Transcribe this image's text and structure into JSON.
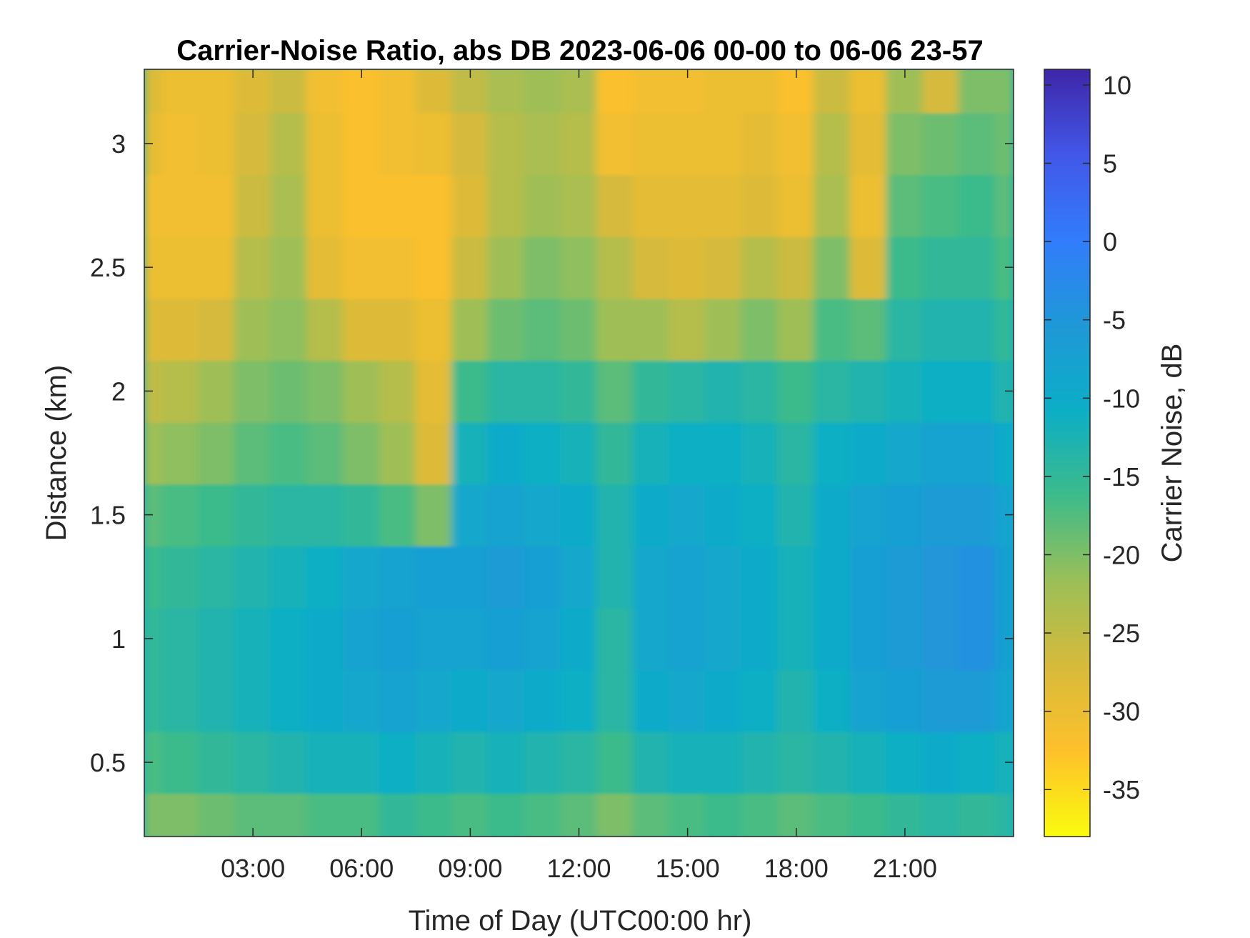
{
  "chart_data": {
    "type": "heatmap",
    "title": "Carrier-Noise Ratio, abs DB 2023-06-06 00-00 to 06-06 23-57",
    "xlabel": "Time of Day (UTC00:00 hr)",
    "ylabel": "Distance (km)",
    "colorbar_label": "Carrier Noise, dB",
    "xlim": [
      0,
      24
    ],
    "ylim": [
      0.2,
      3.3
    ],
    "clim": [
      -38,
      11
    ],
    "x_ticks": [
      3,
      6,
      9,
      12,
      15,
      18,
      21
    ],
    "x_tick_labels": [
      "03:00",
      "06:00",
      "09:00",
      "12:00",
      "15:00",
      "18:00",
      "21:00"
    ],
    "y_ticks": [
      0.5,
      1,
      1.5,
      2,
      2.5,
      3
    ],
    "y_tick_labels": [
      "0.5",
      "1",
      "1.5",
      "2",
      "2.5",
      "3"
    ],
    "colorbar_ticks": [
      10,
      5,
      0,
      -5,
      -10,
      -15,
      -20,
      -25,
      -30,
      -35
    ],
    "colorbar_tick_labels": [
      "10",
      "5",
      "0",
      "-5",
      "-10",
      "-15",
      "-20",
      "-25",
      "-30",
      "-35"
    ],
    "colormap": "parula",
    "colormap_stops": [
      "#F9FB0E",
      "#FEC12B",
      "#D7BA3B",
      "#9BBF58",
      "#3DBB8A",
      "#0CAEC7",
      "#1F98D7",
      "#327CFC",
      "#4257E8",
      "#3E26A8"
    ],
    "grid": false,
    "time_hours": [
      0,
      1,
      2,
      3,
      4,
      5,
      6,
      7,
      8,
      9,
      10,
      11,
      12,
      13,
      14,
      15,
      16,
      17,
      18,
      19,
      20,
      21,
      22,
      23,
      24
    ],
    "distance_km": [
      0.25,
      0.5,
      0.75,
      1.0,
      1.25,
      1.5,
      1.75,
      2.0,
      2.25,
      2.5,
      2.75,
      3.0,
      3.25
    ],
    "cnr_db": [
      [
        -20,
        -20,
        -19,
        -18,
        -18,
        -17,
        -17,
        -15,
        -16,
        -17,
        -16,
        -17,
        -18,
        -20,
        -18,
        -17,
        -16,
        -17,
        -18,
        -17,
        -16,
        -15,
        -14,
        -15,
        -14
      ],
      [
        -17,
        -16,
        -15,
        -14,
        -13,
        -12,
        -12,
        -11,
        -12,
        -13,
        -12,
        -13,
        -14,
        -16,
        -13,
        -12,
        -12,
        -13,
        -14,
        -13,
        -12,
        -11,
        -10,
        -11,
        -12
      ],
      [
        -15,
        -14,
        -13,
        -12,
        -11,
        -10,
        -9,
        -8,
        -9,
        -10,
        -9,
        -10,
        -11,
        -14,
        -10,
        -9,
        -10,
        -11,
        -13,
        -11,
        -8,
        -7,
        -6,
        -6,
        -8
      ],
      [
        -15,
        -14,
        -13,
        -12,
        -11,
        -10,
        -8,
        -7,
        -8,
        -8,
        -7,
        -8,
        -10,
        -14,
        -9,
        -8,
        -9,
        -10,
        -12,
        -10,
        -7,
        -6,
        -5,
        -4,
        -7
      ],
      [
        -16,
        -15,
        -14,
        -13,
        -12,
        -11,
        -9,
        -8,
        -7,
        -7,
        -6,
        -7,
        -9,
        -13,
        -9,
        -8,
        -9,
        -10,
        -12,
        -10,
        -7,
        -6,
        -5,
        -4,
        -7
      ],
      [
        -18,
        -17,
        -16,
        -15,
        -14,
        -14,
        -15,
        -17,
        -20,
        -9,
        -8,
        -9,
        -10,
        -13,
        -10,
        -9,
        -10,
        -11,
        -13,
        -10,
        -8,
        -7,
        -6,
        -6,
        -8
      ],
      [
        -22,
        -21,
        -20,
        -18,
        -17,
        -18,
        -20,
        -22,
        -28,
        -12,
        -10,
        -11,
        -12,
        -15,
        -12,
        -11,
        -11,
        -12,
        -14,
        -11,
        -10,
        -9,
        -8,
        -8,
        -10
      ],
      [
        -25,
        -24,
        -22,
        -20,
        -19,
        -20,
        -22,
        -24,
        -29,
        -16,
        -14,
        -14,
        -15,
        -18,
        -15,
        -14,
        -13,
        -14,
        -16,
        -14,
        -13,
        -12,
        -11,
        -11,
        -13
      ],
      [
        -28,
        -28,
        -27,
        -22,
        -21,
        -24,
        -28,
        -28,
        -30,
        -22,
        -19,
        -18,
        -19,
        -22,
        -22,
        -24,
        -22,
        -20,
        -22,
        -17,
        -18,
        -14,
        -13,
        -13,
        -15
      ],
      [
        -30,
        -30,
        -30,
        -24,
        -22,
        -29,
        -31,
        -31,
        -32,
        -26,
        -22,
        -20,
        -21,
        -24,
        -27,
        -28,
        -27,
        -24,
        -26,
        -20,
        -28,
        -16,
        -15,
        -15,
        -17
      ],
      [
        -31,
        -31,
        -31,
        -26,
        -23,
        -30,
        -32,
        -32,
        -32,
        -28,
        -24,
        -22,
        -23,
        -27,
        -29,
        -29,
        -29,
        -28,
        -30,
        -23,
        -30,
        -18,
        -17,
        -16,
        -18
      ],
      [
        -29,
        -31,
        -30,
        -27,
        -24,
        -30,
        -32,
        -31,
        -30,
        -27,
        -24,
        -23,
        -24,
        -31,
        -30,
        -30,
        -30,
        -29,
        -31,
        -24,
        -29,
        -20,
        -19,
        -18,
        -19
      ],
      [
        -28,
        -30,
        -30,
        -28,
        -26,
        -31,
        -32,
        -31,
        -28,
        -25,
        -23,
        -22,
        -23,
        -32,
        -31,
        -31,
        -30,
        -30,
        -32,
        -26,
        -30,
        -22,
        -27,
        -20,
        -20
      ]
    ]
  }
}
